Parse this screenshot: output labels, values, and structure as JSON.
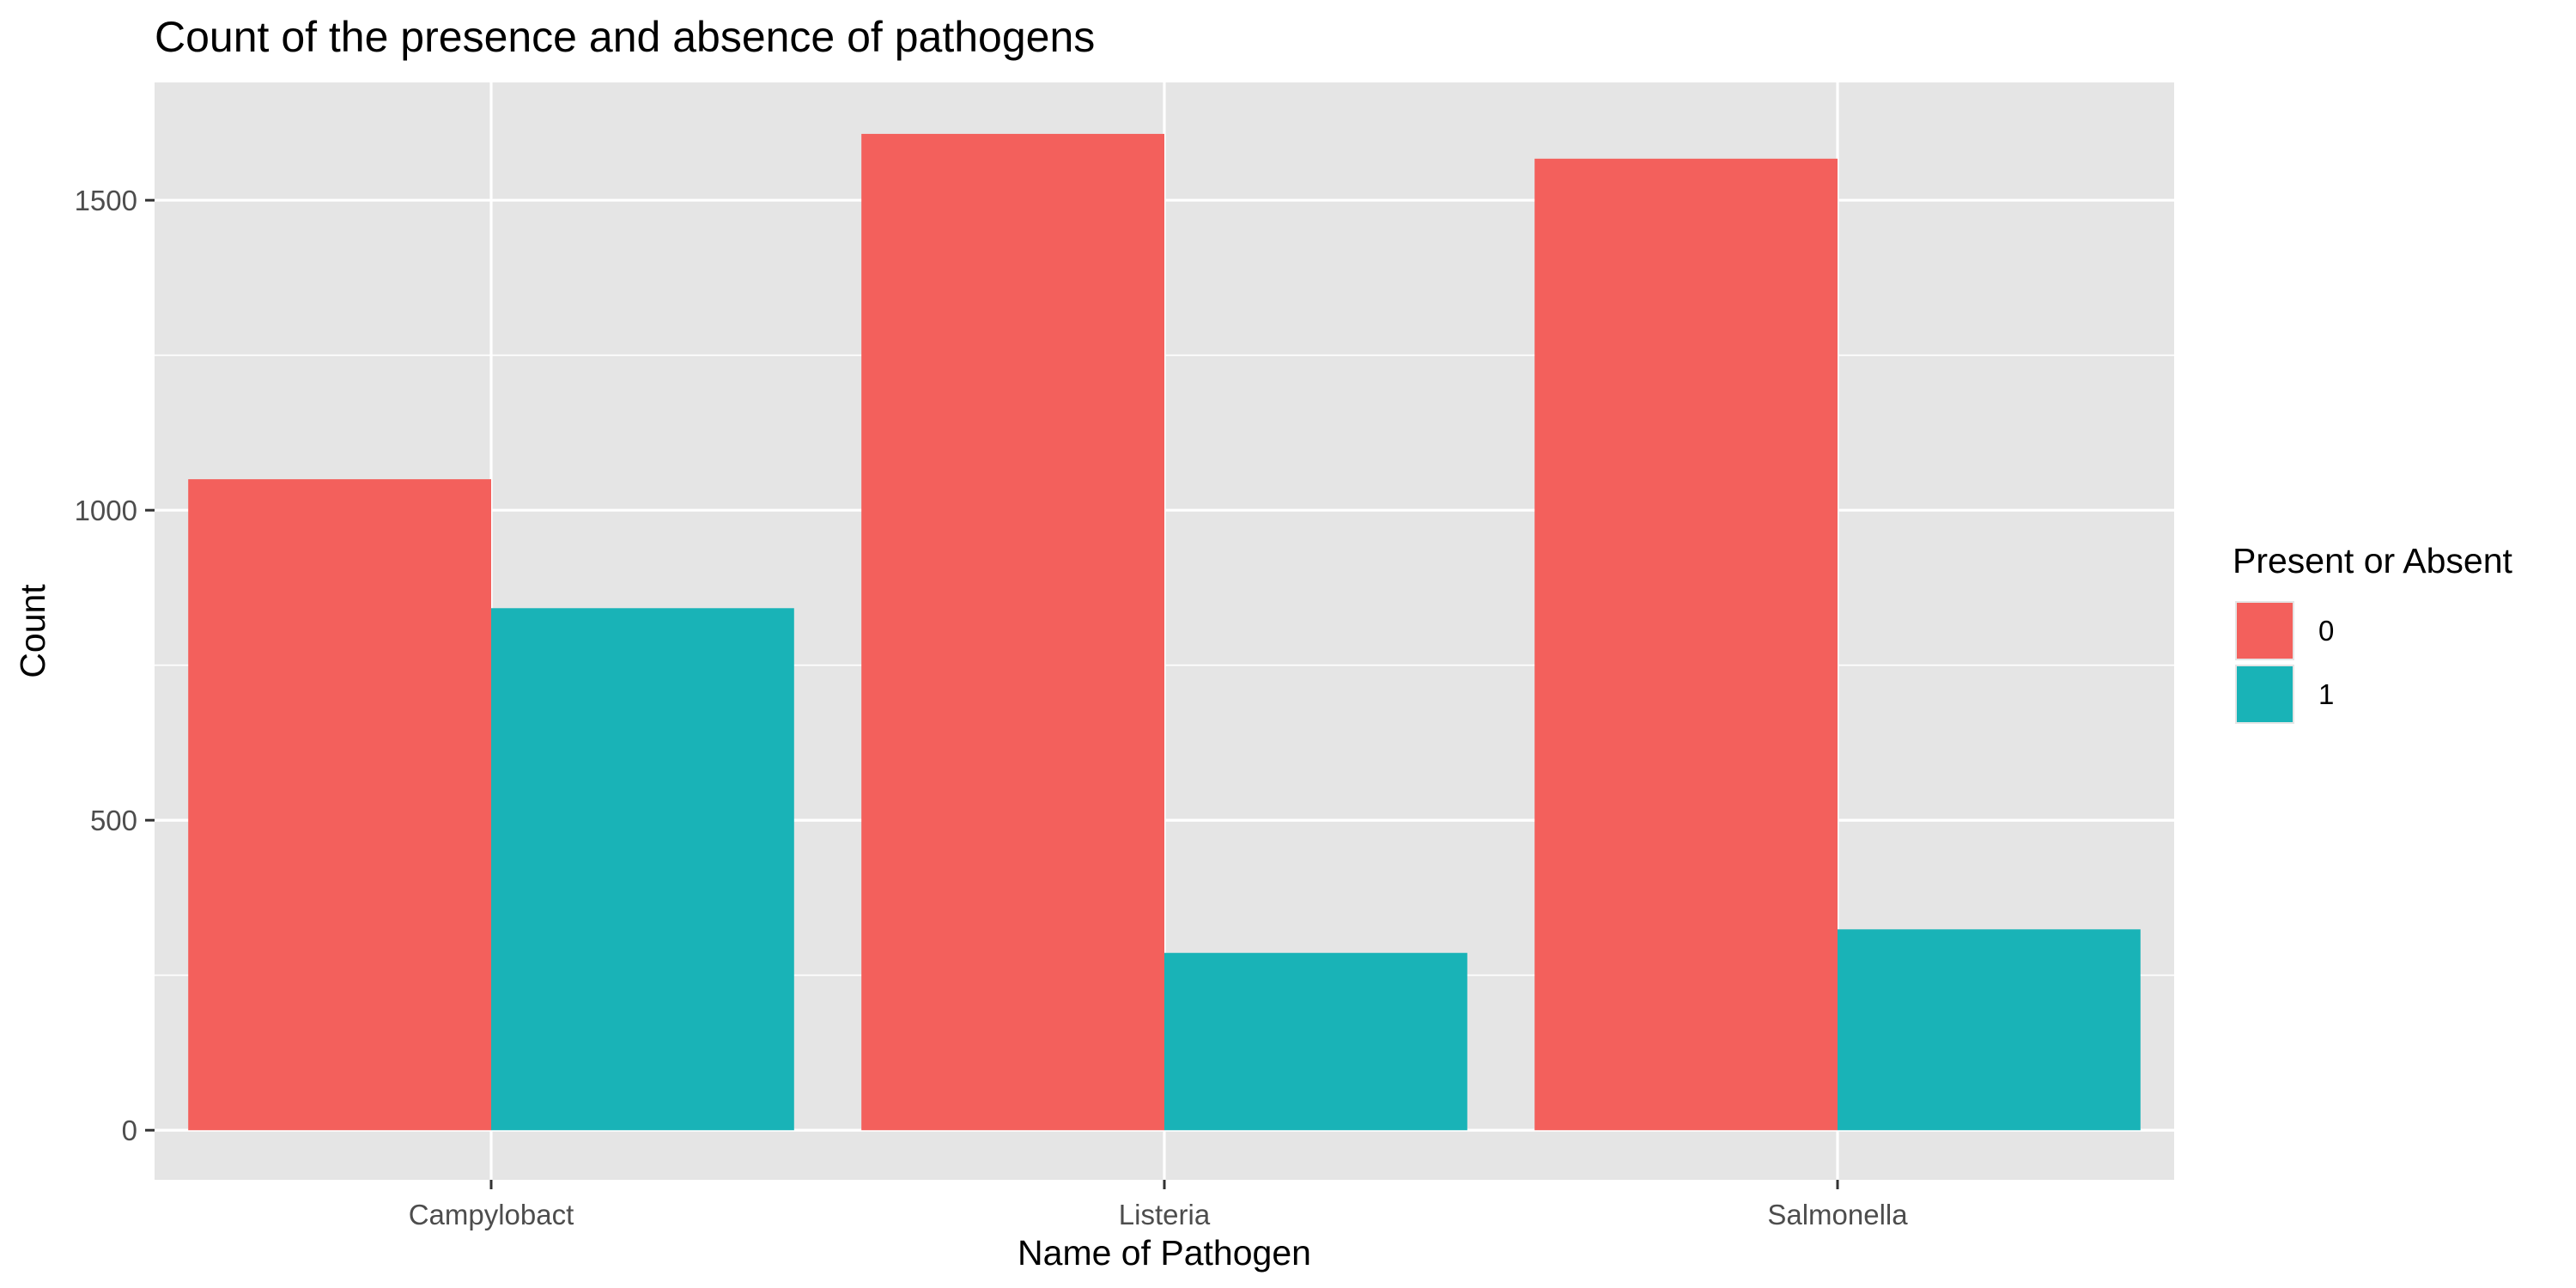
{
  "chart_data": {
    "type": "bar",
    "title": "Count of the presence and absence of pathogens",
    "xlabel": "Name of Pathogen",
    "ylabel": "Count",
    "categories": [
      "Campylobact",
      "Listeria",
      "Salmonella"
    ],
    "series": [
      {
        "name": "0",
        "color": "#f3605c",
        "values": [
          1050,
          1607,
          1567
        ]
      },
      {
        "name": "1",
        "color": "#19b3b7",
        "values": [
          842,
          286,
          324
        ]
      }
    ],
    "ylim": [
      -80,
      1690
    ],
    "yticks": [
      0,
      500,
      1000,
      1500
    ],
    "grid": true,
    "legend": {
      "title": "Present or Absent",
      "position": "right"
    },
    "colors": {
      "panel": "#e5e5e5",
      "grid": "#ffffff",
      "text": "#000000",
      "tick_text": "#4d4d4d",
      "tick_mark": "#333333"
    }
  }
}
